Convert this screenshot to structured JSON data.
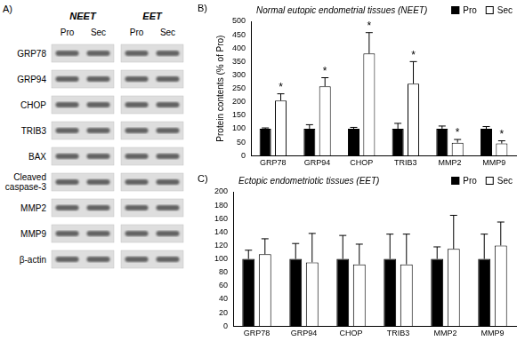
{
  "blot": {
    "panel_label": "A)",
    "groups": [
      {
        "name": "NEET",
        "lanes": [
          "Pro",
          "Sec"
        ]
      },
      {
        "name": "EET",
        "lanes": [
          "Pro",
          "Sec"
        ]
      }
    ],
    "rows": [
      "GRP78",
      "GRP94",
      "CHOP",
      "TRIB3",
      "BAX",
      "Cleaved caspase-3",
      "MMP2",
      "MMP9",
      "β-actin"
    ]
  },
  "chart_data": [
    {
      "type": "bar",
      "panel_label": "B)",
      "title": "Normal eutopic endometrial tissues (NEET)",
      "y_label": "Protein contents (% of Pro)",
      "categories": [
        "GRP78",
        "GRP94",
        "CHOP",
        "TRIB3",
        "MMP2",
        "MMP9"
      ],
      "series": [
        {
          "name": "Pro",
          "color": "#000000",
          "values": [
            100,
            100,
            100,
            100,
            100,
            100
          ],
          "errors": [
            3,
            15,
            5,
            20,
            10,
            8
          ]
        },
        {
          "name": "Sec",
          "color": "#ffffff",
          "values": [
            205,
            258,
            380,
            268,
            48,
            45
          ],
          "errors": [
            25,
            32,
            78,
            82,
            12,
            10
          ]
        }
      ],
      "annotations": [
        {
          "category": "GRP78",
          "series": "Sec",
          "text": "*"
        },
        {
          "category": "GRP94",
          "series": "Sec",
          "text": "*"
        },
        {
          "category": "CHOP",
          "series": "Sec",
          "text": "*"
        },
        {
          "category": "TRIB3",
          "series": "Sec",
          "text": "*"
        },
        {
          "category": "MMP2",
          "series": "Sec",
          "text": "*"
        },
        {
          "category": "MMP9",
          "series": "Sec",
          "text": "*"
        }
      ],
      "ylim": [
        0,
        500
      ],
      "yticks": [
        0,
        50,
        100,
        150,
        200,
        250,
        300,
        350,
        400,
        450,
        500
      ],
      "grid": false,
      "legend": "top-right"
    },
    {
      "type": "bar",
      "panel_label": "C)",
      "title": "Ectopic endometriotic tissues (EET)",
      "categories": [
        "GRP78",
        "GRP94",
        "CHOP",
        "TRIB3",
        "MMP2",
        "MMP9"
      ],
      "series": [
        {
          "name": "Pro",
          "color": "#000000",
          "values": [
            100,
            100,
            100,
            100,
            100,
            100
          ],
          "errors": [
            13,
            23,
            35,
            37,
            18,
            37
          ]
        },
        {
          "name": "Sec",
          "color": "#ffffff",
          "values": [
            107,
            95,
            92,
            92,
            115,
            120
          ],
          "errors": [
            23,
            43,
            30,
            45,
            50,
            35
          ]
        }
      ],
      "ylim": [
        0,
        200
      ],
      "yticks": [
        0,
        20,
        40,
        60,
        80,
        100,
        120,
        140,
        160,
        180,
        200
      ],
      "grid": false,
      "legend": "top-right"
    }
  ]
}
